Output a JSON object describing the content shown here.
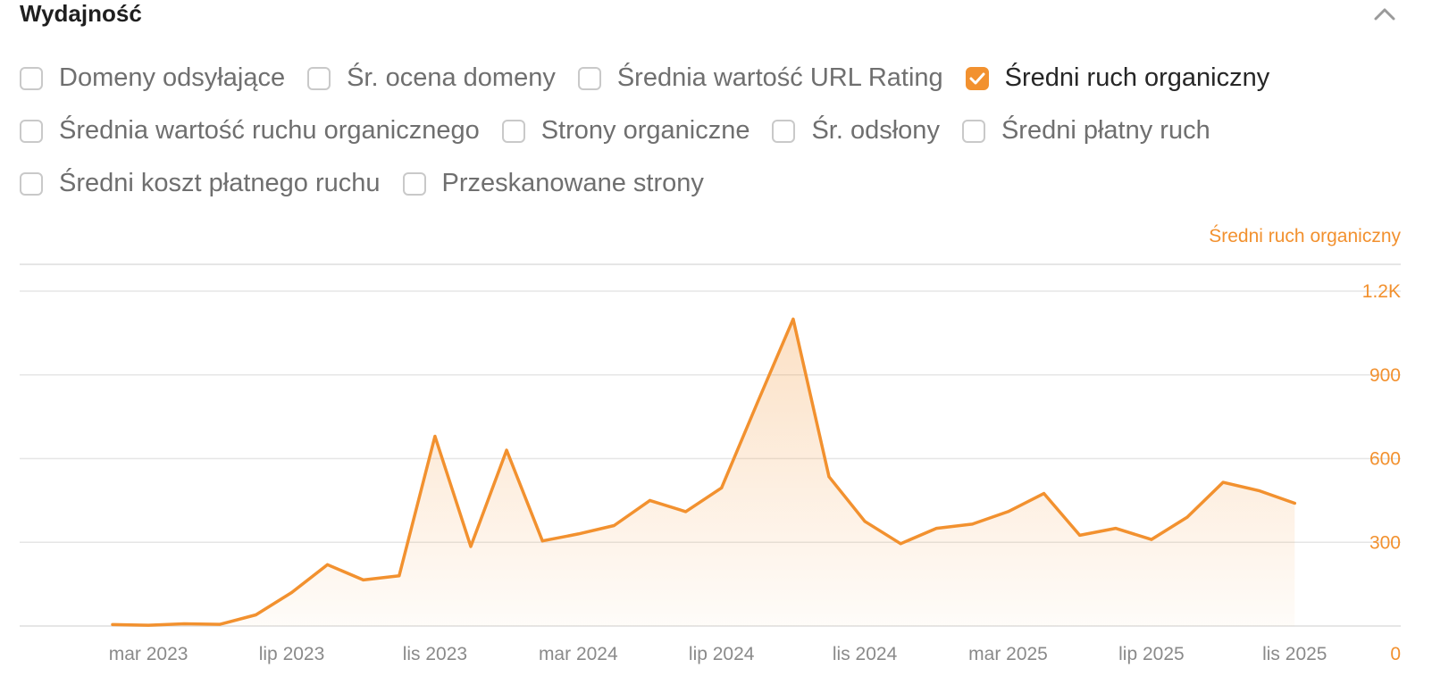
{
  "section": {
    "title": "Wydajność",
    "collapse_icon": "chevron-up-icon"
  },
  "metrics": [
    [
      {
        "label": "Domeny odsyłające",
        "checked": false
      },
      {
        "label": "Śr. ocena domeny",
        "checked": false
      },
      {
        "label": "Średnia wartość URL Rating",
        "checked": false
      },
      {
        "label": "Średni ruch organiczny",
        "checked": true
      }
    ],
    [
      {
        "label": "Średnia wartość ruchu organicznego",
        "checked": false
      },
      {
        "label": "Strony organiczne",
        "checked": false
      },
      {
        "label": "Śr. odsłony",
        "checked": false
      },
      {
        "label": "Średni płatny ruch",
        "checked": false
      }
    ],
    [
      {
        "label": "Średni koszt płatnego ruchu",
        "checked": false
      },
      {
        "label": "Przeskanowane strony",
        "checked": false
      }
    ]
  ],
  "colors": {
    "accent": "#f2912f",
    "grid": "#e6e6e6",
    "axis_text": "#8a8a8a"
  },
  "chart_data": {
    "type": "area",
    "series": [
      {
        "name": "Średni ruch organiczny",
        "values": [
          5,
          3,
          8,
          6,
          40,
          120,
          220,
          165,
          180,
          680,
          285,
          630,
          305,
          330,
          360,
          450,
          410,
          495,
          800,
          1100,
          535,
          375,
          295,
          350,
          365,
          410,
          475,
          325,
          350,
          310,
          390,
          515,
          485,
          440
        ]
      }
    ],
    "x_ticks": [
      {
        "index": 1,
        "label": "mar 2023"
      },
      {
        "index": 5,
        "label": "lip 2023"
      },
      {
        "index": 9,
        "label": "lis 2023"
      },
      {
        "index": 13,
        "label": "mar 2024"
      },
      {
        "index": 17,
        "label": "lip 2024"
      },
      {
        "index": 21,
        "label": "lis 2024"
      },
      {
        "index": 25,
        "label": "mar 2025"
      },
      {
        "index": 29,
        "label": "lip 2025"
      },
      {
        "index": 33,
        "label": "lis 2025"
      }
    ],
    "y_ticks": [
      {
        "value": 0,
        "label": "0"
      },
      {
        "value": 300,
        "label": "300"
      },
      {
        "value": 600,
        "label": "600"
      },
      {
        "value": 900,
        "label": "900"
      },
      {
        "value": 1200,
        "label": "1.2K"
      }
    ],
    "ylim": [
      0,
      1200
    ],
    "legend": "Średni ruch organiczny",
    "grid": true
  }
}
